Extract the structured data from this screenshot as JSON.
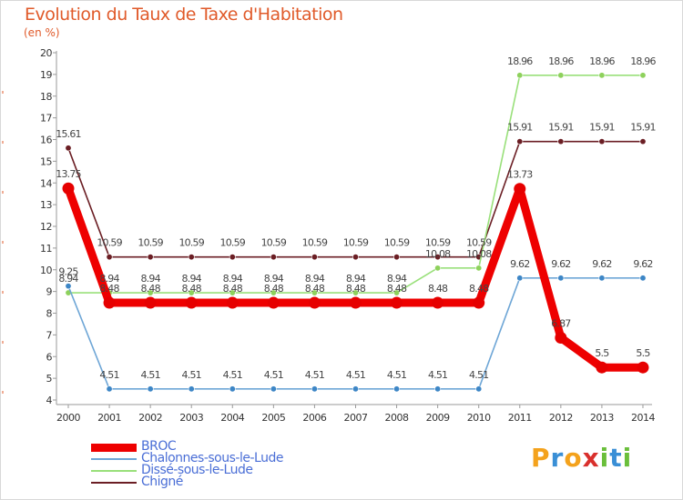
{
  "title": "Evolution du Taux de Taxe d'Habitation",
  "subtitle": "(en %)",
  "logo": {
    "text": "Proxiti",
    "letters": [
      "P",
      "r",
      "o",
      "x",
      "i",
      "t",
      "i"
    ],
    "colors": [
      "#f4a21c",
      "#3a8fd6",
      "#f4a21c",
      "#d9302c",
      "#6abf3b",
      "#3a8fd6",
      "#6abf3b"
    ]
  },
  "chart_data": {
    "type": "line",
    "title": "Evolution du Taux de Taxe d'Habitation",
    "ylabel": "(en %)",
    "xlabel": "",
    "ylim": [
      4,
      20
    ],
    "yticks": [
      4,
      5,
      6,
      7,
      8,
      9,
      10,
      11,
      12,
      13,
      14,
      15,
      16,
      17,
      18,
      19,
      20
    ],
    "grid": false,
    "legend_position": "bottom-left",
    "x": [
      "2000",
      "2001",
      "2002",
      "2003",
      "2004",
      "2005",
      "2006",
      "2007",
      "2008",
      "2009",
      "2010",
      "2011",
      "2012",
      "2013",
      "2014"
    ],
    "series": [
      {
        "name": "Chigné",
        "color": "#6b1e24",
        "marker": "#6b1e24",
        "values": [
          15.61,
          10.59,
          10.59,
          10.59,
          10.59,
          10.59,
          10.59,
          10.59,
          10.59,
          10.59,
          10.59,
          15.91,
          15.91,
          15.91,
          15.91
        ],
        "labels": [
          "15.61",
          "10.59",
          "10.59",
          "10.59",
          "10.59",
          "10.59",
          "10.59",
          "10.59",
          "10.59",
          "10.59",
          "10.59",
          "15.91",
          "15.91",
          "15.91",
          "15.91"
        ]
      },
      {
        "name": "Dissé-sous-le-Lude",
        "color": "#99e07a",
        "marker": "#8ed15c",
        "values": [
          8.94,
          8.94,
          8.94,
          8.94,
          8.94,
          8.94,
          8.94,
          8.94,
          8.94,
          10.08,
          10.08,
          18.96,
          18.96,
          18.96,
          18.96
        ],
        "labels": [
          "8.94",
          "8.94",
          "8.94",
          "8.94",
          "8.94",
          "8.94",
          "8.94",
          "8.94",
          "8.94",
          "10.08",
          "10.08",
          "18.96",
          "18.96",
          "18.96",
          "18.96"
        ]
      },
      {
        "name": "Chalonnes-sous-le-Lude",
        "color": "#6ea6d6",
        "marker": "#3d86c6",
        "values": [
          9.25,
          4.51,
          4.51,
          4.51,
          4.51,
          4.51,
          4.51,
          4.51,
          4.51,
          4.51,
          4.51,
          9.62,
          9.62,
          9.62,
          9.62
        ],
        "labels": [
          "9.25",
          "4.51",
          "4.51",
          "4.51",
          "4.51",
          "4.51",
          "4.51",
          "4.51",
          "4.51",
          "4.51",
          "4.51",
          "9.62",
          "9.62",
          "9.62",
          "9.62"
        ]
      },
      {
        "name": "BROC",
        "color": "#ee0000",
        "marker": "#e60000",
        "values": [
          13.75,
          8.48,
          8.48,
          8.48,
          8.48,
          8.48,
          8.48,
          8.48,
          8.48,
          8.48,
          8.48,
          13.73,
          6.87,
          5.5,
          5.5
        ],
        "labels": [
          "13.75",
          "8.48",
          "8.48",
          "8.48",
          "8.48",
          "8.48",
          "8.48",
          "8.48",
          "8.48",
          "8.48",
          "8.48",
          "13.73",
          "6.87",
          "5.5",
          "5.5"
        ]
      }
    ],
    "legend": [
      {
        "name": "BROC",
        "color": "#ee0000",
        "width": 9
      },
      {
        "name": "Chalonnes-sous-le-Lude",
        "color": "#6ea6d6",
        "width": 2
      },
      {
        "name": "Dissé-sous-le-Lude",
        "color": "#99e07a",
        "width": 2
      },
      {
        "name": "Chigné",
        "color": "#6b1e24",
        "width": 2
      }
    ]
  }
}
